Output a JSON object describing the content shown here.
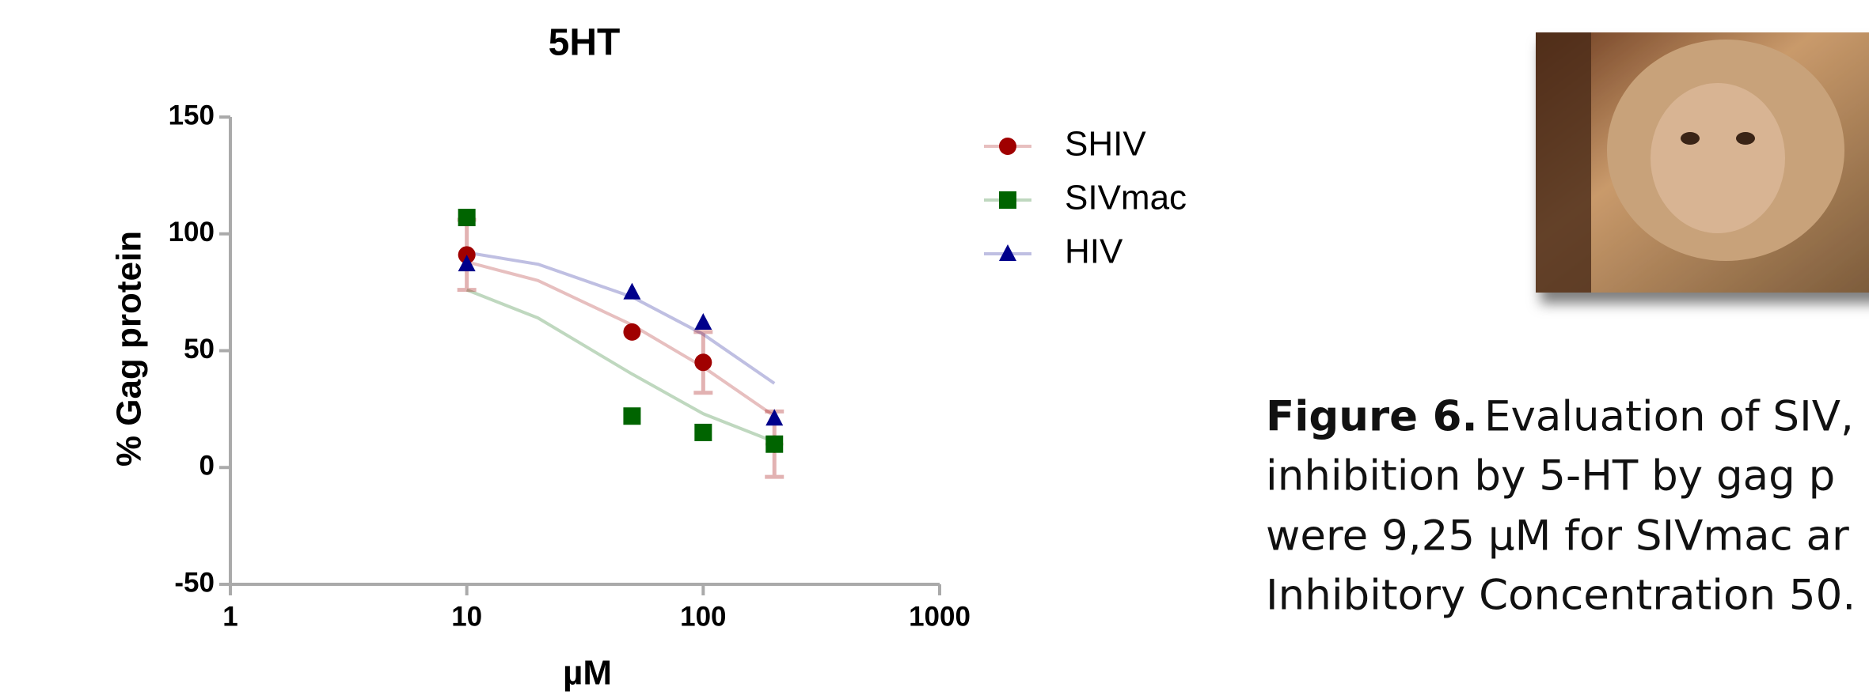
{
  "chart_data": {
    "type": "scatter",
    "title": "5HT",
    "x_label": "µM",
    "y_label": "% Gag protein",
    "xlim": [
      1,
      1000
    ],
    "xticks": [
      1,
      10,
      100,
      1000
    ],
    "x_scale": "log",
    "ylim": [
      -50,
      150
    ],
    "yticks": [
      -50,
      0,
      50,
      100,
      150
    ],
    "x": [
      10,
      50,
      100,
      200
    ],
    "series": [
      {
        "name": "SHIV",
        "color": "#a00000",
        "marker": "circle",
        "values": [
          91,
          58,
          45,
          10
        ],
        "errors": [
          15,
          null,
          13,
          14
        ],
        "fit": {
          "x": [
            10,
            20,
            50,
            100,
            200
          ],
          "values": [
            88,
            80,
            61,
            43,
            22
          ]
        }
      },
      {
        "name": "SIVmac",
        "color": "#006400",
        "marker": "square",
        "values": [
          107,
          22,
          15,
          10
        ],
        "fit": {
          "x": [
            10,
            20,
            50,
            100,
            200
          ],
          "values": [
            76,
            64,
            40,
            23,
            11
          ]
        }
      },
      {
        "name": "HIV",
        "color": "#00008b",
        "marker": "triangle",
        "values": [
          87,
          75,
          62,
          21
        ],
        "fit": {
          "x": [
            10,
            20,
            50,
            100,
            200
          ],
          "values": [
            92,
            87,
            73,
            57,
            36
          ]
        }
      }
    ]
  },
  "caption": {
    "label": "Figure 6.",
    "lines": [
      "Evaluation of SIV,",
      "inhibition by 5-HT by gag p",
      "were 9,25 µM for SIVmac ar",
      "Inhibitory Concentration 50."
    ]
  }
}
